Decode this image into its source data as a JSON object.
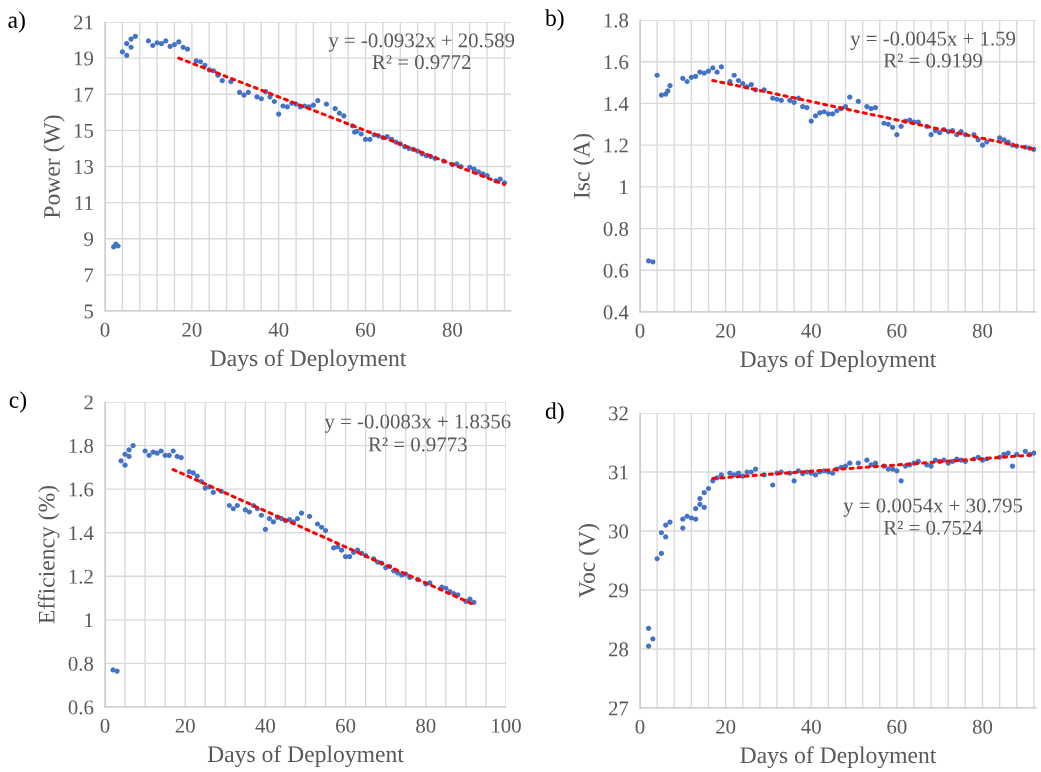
{
  "chart_data": [
    {
      "type": "scatter",
      "title": "a)",
      "xlabel": "Days of Deployment",
      "ylabel": "Power (W)",
      "xlim": [
        0,
        93.5
      ],
      "ylim": [
        5,
        21
      ],
      "xticks": [
        0,
        {
          "value": 4,
          "label": null
        },
        {
          "value": 8,
          "label": null
        },
        {
          "value": 12,
          "label": null
        },
        {
          "value": 16,
          "label": null
        },
        20,
        {
          "value": 24,
          "label": null
        },
        {
          "value": 28,
          "label": null
        },
        {
          "value": 32,
          "label": null
        },
        {
          "value": 36,
          "label": null
        },
        40,
        {
          "value": 44,
          "label": null
        },
        {
          "value": 48,
          "label": null
        },
        {
          "value": 52,
          "label": null
        },
        {
          "value": 56,
          "label": null
        },
        60,
        {
          "value": 64,
          "label": null
        },
        {
          "value": 68,
          "label": null
        },
        {
          "value": 72,
          "label": null
        },
        {
          "value": 76,
          "label": null
        },
        80,
        {
          "value": 84,
          "label": null
        },
        {
          "value": 88,
          "label": null
        },
        {
          "value": 92,
          "label": null
        }
      ],
      "yticks": [
        5,
        7,
        9,
        11,
        13,
        15,
        17,
        19,
        21
      ],
      "grid": true,
      "marker": "circle",
      "annotations": [
        "y = -0.0932x + 20.589",
        "R² = 0.9772"
      ],
      "series": [
        {
          "color": "#4472c4",
          "x": [
            2,
            2.5,
            3,
            4,
            5,
            5,
            6,
            6,
            7,
            10,
            11,
            12,
            13,
            14,
            15,
            16,
            17,
            18,
            19,
            21,
            22,
            23,
            24,
            25,
            26,
            27,
            29,
            31,
            32,
            33,
            35,
            36,
            37,
            38,
            39,
            40,
            41,
            42,
            43,
            44,
            45,
            46,
            47,
            48,
            49,
            51,
            53,
            54,
            55,
            57,
            57.5,
            58,
            59,
            60,
            61,
            62,
            63,
            64,
            65,
            66,
            67,
            68,
            69,
            70,
            71,
            72,
            73,
            74,
            75,
            76,
            78,
            80,
            81,
            82,
            84,
            85,
            86,
            87,
            88,
            90,
            91,
            92
          ],
          "values": [
            8.55,
            8.7,
            8.6,
            19.35,
            19.15,
            19.8,
            19.6,
            20.05,
            20.2,
            19.95,
            19.7,
            19.85,
            19.8,
            19.95,
            19.65,
            19.75,
            19.9,
            19.6,
            19.5,
            18.85,
            18.8,
            18.6,
            18.35,
            18.3,
            18.05,
            17.75,
            17.7,
            17.1,
            16.95,
            17.1,
            16.85,
            16.75,
            17.15,
            16.85,
            16.6,
            15.9,
            16.35,
            16.3,
            16.5,
            16.45,
            16.3,
            16.35,
            16.3,
            16.4,
            16.65,
            16.45,
            16.2,
            15.95,
            15.8,
            15.25,
            14.9,
            14.95,
            14.8,
            14.5,
            14.5,
            14.75,
            14.7,
            14.6,
            14.65,
            14.5,
            14.35,
            14.25,
            14.1,
            14.0,
            13.95,
            13.85,
            13.7,
            13.6,
            13.55,
            13.45,
            13.3,
            13.1,
            13.15,
            13.0,
            12.95,
            12.85,
            12.7,
            12.6,
            12.5,
            12.2,
            12.3,
            12.1
          ]
        },
        {
          "type": "line",
          "line_style": "dotted",
          "color": "#ff0000",
          "x": [
            17,
            92
          ],
          "values": [
            19.0,
            12.0
          ],
          "marker": "none"
        }
      ]
    },
    {
      "type": "scatter",
      "title": "b)",
      "xlabel": "Days of Deployment",
      "ylabel": "Isc (A)",
      "xlim": [
        0,
        92.5
      ],
      "ylim": [
        0.4,
        1.8
      ],
      "xticks": [
        0,
        {
          "value": 4,
          "label": null
        },
        {
          "value": 8,
          "label": null
        },
        {
          "value": 12,
          "label": null
        },
        {
          "value": 16,
          "label": null
        },
        20,
        {
          "value": 24,
          "label": null
        },
        {
          "value": 28,
          "label": null
        },
        {
          "value": 32,
          "label": null
        },
        {
          "value": 36,
          "label": null
        },
        40,
        {
          "value": 44,
          "label": null
        },
        {
          "value": 48,
          "label": null
        },
        {
          "value": 52,
          "label": null
        },
        {
          "value": 56,
          "label": null
        },
        60,
        {
          "value": 64,
          "label": null
        },
        {
          "value": 68,
          "label": null
        },
        {
          "value": 72,
          "label": null
        },
        {
          "value": 76,
          "label": null
        },
        80,
        {
          "value": 84,
          "label": null
        },
        {
          "value": 88,
          "label": null
        },
        {
          "value": 92,
          "label": null
        }
      ],
      "yticks": [
        0.4,
        0.6,
        0.8,
        1,
        1.2,
        1.4,
        1.6,
        1.8
      ],
      "grid": true,
      "marker": "circle",
      "annotations": [
        "y = -0.0045x + 1.59",
        "R² = 0.9199"
      ],
      "series": [
        {
          "color": "#4472c4",
          "x": [
            2,
            3,
            4,
            5,
            6,
            6.5,
            7,
            10,
            11,
            12,
            13,
            14,
            15,
            16,
            17,
            18,
            19,
            21,
            22,
            23,
            24,
            25,
            26,
            27,
            29,
            31,
            32,
            33,
            35,
            36,
            37,
            38,
            39,
            40,
            41,
            42,
            43,
            44,
            45,
            46,
            47,
            48,
            49,
            51,
            53,
            54,
            55,
            57,
            58,
            59,
            60,
            61,
            62,
            63,
            64,
            65,
            67,
            68,
            69,
            70,
            71,
            72,
            73,
            74,
            75,
            76,
            78,
            79,
            80,
            81,
            84,
            85,
            86,
            87,
            88,
            90,
            91,
            92
          ],
          "values": [
            0.645,
            0.64,
            1.535,
            1.44,
            1.445,
            1.46,
            1.485,
            1.52,
            1.505,
            1.525,
            1.53,
            1.55,
            1.545,
            1.555,
            1.57,
            1.55,
            1.575,
            1.505,
            1.535,
            1.51,
            1.495,
            1.48,
            1.49,
            1.465,
            1.465,
            1.425,
            1.42,
            1.415,
            1.415,
            1.405,
            1.425,
            1.385,
            1.38,
            1.315,
            1.34,
            1.355,
            1.36,
            1.35,
            1.35,
            1.365,
            1.375,
            1.385,
            1.43,
            1.41,
            1.385,
            1.375,
            1.38,
            1.305,
            1.3,
            1.285,
            1.25,
            1.29,
            1.315,
            1.32,
            1.31,
            1.31,
            1.29,
            1.25,
            1.27,
            1.26,
            1.275,
            1.265,
            1.27,
            1.25,
            1.265,
            1.25,
            1.25,
            1.225,
            1.2,
            1.215,
            1.235,
            1.225,
            1.215,
            1.2,
            1.195,
            1.19,
            1.185,
            1.18
          ]
        },
        {
          "type": "line",
          "line_style": "dotted",
          "color": "#ff0000",
          "x": [
            17,
            92
          ],
          "values": [
            1.51,
            1.18
          ],
          "marker": "none"
        }
      ]
    },
    {
      "type": "scatter",
      "title": "c)",
      "xlabel": "Days of Deployment",
      "ylabel": "Efficiency (%)",
      "xlim": [
        0,
        100
      ],
      "ylim": [
        0.6,
        2
      ],
      "xticks": [
        0,
        {
          "value": 5,
          "label": null
        },
        {
          "value": 10,
          "label": null
        },
        {
          "value": 15,
          "label": null
        },
        20,
        {
          "value": 25,
          "label": null
        },
        {
          "value": 30,
          "label": null
        },
        {
          "value": 35,
          "label": null
        },
        40,
        {
          "value": 45,
          "label": null
        },
        {
          "value": 50,
          "label": null
        },
        {
          "value": 55,
          "label": null
        },
        60,
        {
          "value": 65,
          "label": null
        },
        {
          "value": 70,
          "label": null
        },
        {
          "value": 75,
          "label": null
        },
        80,
        {
          "value": 85,
          "label": null
        },
        {
          "value": 90,
          "label": null
        },
        {
          "value": 95,
          "label": null
        },
        100
      ],
      "yticks": [
        0.6,
        0.8,
        1,
        1.2,
        1.4,
        1.6,
        1.8,
        2
      ],
      "grid": true,
      "marker": "circle",
      "annotations": [
        "y = -0.0083x + 1.8356",
        "R² = 0.9773"
      ],
      "series": [
        {
          "color": "#4472c4",
          "x": [
            2,
            3,
            4,
            5,
            5,
            6,
            6,
            7,
            10,
            11,
            12,
            13,
            14,
            15,
            16,
            17,
            18,
            19,
            21,
            22,
            23,
            24,
            25,
            26,
            27,
            29,
            31,
            32,
            33,
            35,
            36,
            37,
            38,
            39,
            40,
            41,
            42,
            43,
            44,
            45,
            46,
            47,
            48,
            49,
            51,
            53,
            54,
            55,
            57,
            58,
            59,
            60,
            61,
            62,
            63,
            64,
            65,
            67,
            68,
            69,
            70,
            71,
            72,
            73,
            74,
            75,
            76,
            78,
            80,
            81,
            84,
            85,
            86,
            87,
            88,
            90,
            91,
            92
          ],
          "values": [
            0.77,
            0.765,
            1.73,
            1.71,
            1.76,
            1.75,
            1.78,
            1.8,
            1.775,
            1.755,
            1.77,
            1.765,
            1.775,
            1.755,
            1.755,
            1.775,
            1.75,
            1.745,
            1.68,
            1.675,
            1.66,
            1.635,
            1.605,
            1.61,
            1.585,
            1.59,
            1.525,
            1.51,
            1.525,
            1.505,
            1.495,
            1.525,
            1.51,
            1.48,
            1.415,
            1.465,
            1.45,
            1.47,
            1.465,
            1.455,
            1.46,
            1.45,
            1.465,
            1.49,
            1.475,
            1.44,
            1.425,
            1.41,
            1.33,
            1.335,
            1.32,
            1.29,
            1.29,
            1.31,
            1.32,
            1.305,
            1.295,
            1.28,
            1.265,
            1.26,
            1.24,
            1.245,
            1.225,
            1.215,
            1.205,
            1.21,
            1.195,
            1.185,
            1.165,
            1.17,
            1.15,
            1.145,
            1.13,
            1.12,
            1.115,
            1.085,
            1.095,
            1.08
          ]
        },
        {
          "type": "line",
          "line_style": "dotted",
          "color": "#ff0000",
          "x": [
            17,
            92
          ],
          "values": [
            1.69,
            1.07
          ],
          "marker": "none"
        }
      ]
    },
    {
      "type": "scatter",
      "title": "d)",
      "xlabel": "Days of Deployment",
      "ylabel": "Voc (V)",
      "xlim": [
        0,
        92.5
      ],
      "ylim": [
        27,
        32
      ],
      "xticks": [
        0,
        {
          "value": 4,
          "label": null
        },
        {
          "value": 8,
          "label": null
        },
        {
          "value": 12,
          "label": null
        },
        {
          "value": 16,
          "label": null
        },
        20,
        {
          "value": 24,
          "label": null
        },
        {
          "value": 28,
          "label": null
        },
        {
          "value": 32,
          "label": null
        },
        {
          "value": 36,
          "label": null
        },
        40,
        {
          "value": 44,
          "label": null
        },
        {
          "value": 48,
          "label": null
        },
        {
          "value": 52,
          "label": null
        },
        {
          "value": 56,
          "label": null
        },
        60,
        {
          "value": 64,
          "label": null
        },
        {
          "value": 68,
          "label": null
        },
        {
          "value": 72,
          "label": null
        },
        {
          "value": 76,
          "label": null
        },
        80,
        {
          "value": 84,
          "label": null
        },
        {
          "value": 88,
          "label": null
        },
        {
          "value": 92,
          "label": null
        }
      ],
      "yticks": [
        27,
        28,
        29,
        30,
        31,
        32
      ],
      "grid": true,
      "marker": "circle",
      "annotations": [
        "y = 0.0054x + 30.795",
        "R² = 0.7524"
      ],
      "series": [
        {
          "color": "#4472c4",
          "x": [
            2,
            2,
            3,
            4,
            5,
            5,
            6,
            6,
            7,
            10,
            10,
            11,
            12,
            13,
            13,
            14,
            14,
            15,
            15,
            16,
            17,
            18,
            19,
            21,
            22,
            23,
            24,
            25,
            26,
            27,
            29,
            31,
            32,
            33,
            35,
            36,
            37,
            38,
            39,
            40,
            41,
            42,
            43,
            44,
            45,
            46,
            47,
            48,
            49,
            51,
            53,
            54,
            55,
            57,
            58,
            59,
            60,
            61,
            62,
            63,
            64,
            65,
            67,
            68,
            69,
            70,
            71,
            72,
            73,
            74,
            75,
            76,
            78,
            79,
            80,
            81,
            84,
            85,
            86,
            87,
            88,
            90,
            91,
            92
          ],
          "values": [
            28.05,
            28.35,
            28.17,
            29.53,
            29.62,
            29.97,
            29.9,
            30.1,
            30.15,
            30.05,
            30.2,
            30.25,
            30.22,
            30.2,
            30.38,
            30.45,
            30.55,
            30.4,
            30.65,
            30.72,
            30.85,
            30.9,
            30.95,
            30.98,
            30.95,
            30.98,
            30.93,
            31.0,
            31.0,
            31.05,
            30.95,
            30.78,
            30.98,
            31.0,
            30.98,
            30.85,
            31.02,
            30.97,
            31.0,
            30.98,
            30.95,
            31.0,
            31.02,
            31.0,
            30.98,
            31.05,
            31.08,
            31.1,
            31.15,
            31.15,
            31.2,
            31.12,
            31.15,
            31.1,
            31.05,
            31.05,
            31.02,
            30.85,
            31.1,
            31.12,
            31.15,
            31.18,
            31.12,
            31.1,
            31.2,
            31.18,
            31.2,
            31.15,
            31.18,
            31.22,
            31.2,
            31.18,
            31.22,
            31.25,
            31.2,
            31.22,
            31.25,
            31.3,
            31.32,
            31.1,
            31.3,
            31.35,
            31.3,
            31.32
          ]
        },
        {
          "type": "line",
          "line_style": "dotted",
          "color": "#ff0000",
          "x": [
            17,
            92
          ],
          "values": [
            30.89,
            31.29
          ],
          "marker": "none"
        }
      ]
    }
  ]
}
